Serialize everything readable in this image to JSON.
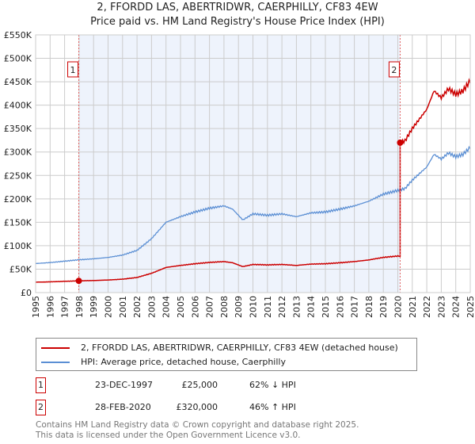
{
  "chart_data": {
    "type": "line",
    "title": "2, FFORDD LAS, ABERTRIDWR, CAERPHILLY, CF83 4EW",
    "subtitle": "Price paid vs. HM Land Registry's House Price Index (HPI)",
    "xlim": [
      1995,
      2025
    ],
    "ylim": [
      0,
      550000
    ],
    "x_ticks": [
      "1995",
      "1996",
      "1997",
      "1998",
      "1999",
      "2000",
      "2001",
      "2002",
      "2003",
      "2004",
      "2005",
      "2006",
      "2007",
      "2008",
      "2009",
      "2010",
      "2011",
      "2012",
      "2013",
      "2014",
      "2015",
      "2016",
      "2017",
      "2018",
      "2019",
      "2020",
      "2021",
      "2022",
      "2023",
      "2024",
      "2025"
    ],
    "y_ticks": [
      {
        "v": 0,
        "l": "£0"
      },
      {
        "v": 50000,
        "l": "£50K"
      },
      {
        "v": 100000,
        "l": "£100K"
      },
      {
        "v": 150000,
        "l": "£150K"
      },
      {
        "v": 200000,
        "l": "£200K"
      },
      {
        "v": 250000,
        "l": "£250K"
      },
      {
        "v": 300000,
        "l": "£300K"
      },
      {
        "v": 350000,
        "l": "£350K"
      },
      {
        "v": 400000,
        "l": "£400K"
      },
      {
        "v": 450000,
        "l": "£450K"
      },
      {
        "v": 500000,
        "l": "£500K"
      },
      {
        "v": 550000,
        "l": "£550K"
      }
    ],
    "grid": true,
    "series": [
      {
        "name": "2, FFORDD LAS, ABERTRIDWR, CAERPHILLY, CF83 4EW (detached house)",
        "color": "#cc0000"
      },
      {
        "name": "HPI: Average price, detached house, Caerphilly",
        "color": "#5b8fd4",
        "x": [
          1995,
          1996,
          1997,
          1998,
          1999,
          2000,
          2001,
          2002,
          2003,
          2004,
          2005,
          2006,
          2007,
          2008,
          2008.6,
          2009.3,
          2010,
          2011,
          2012,
          2013,
          2014,
          2015,
          2016,
          2017,
          2018,
          2019,
          2020,
          2020.5,
          2021,
          2022,
          2022.5,
          2023,
          2023.5,
          2024,
          2024.5,
          2025
        ],
        "y": [
          62000,
          64000,
          67000,
          70000,
          72000,
          75000,
          80000,
          90000,
          115000,
          150000,
          162000,
          172000,
          180000,
          185000,
          178000,
          155000,
          168000,
          165000,
          168000,
          162000,
          170000,
          172000,
          178000,
          185000,
          195000,
          210000,
          218000,
          222000,
          240000,
          268000,
          295000,
          285000,
          298000,
          290000,
          295000,
          310000
        ]
      }
    ],
    "sales": [
      {
        "id": "1",
        "x": 1997.98,
        "date": "23-DEC-1997",
        "price": 25000,
        "price_label": "£25,000",
        "hpi": "62% ↓ HPI"
      },
      {
        "id": "2",
        "x": 2020.16,
        "date": "28-FEB-2020",
        "price": 320000,
        "price_label": "£320,000",
        "hpi": "46% ↑ HPI"
      }
    ],
    "shaded_range": [
      1997.98,
      2020.16
    ]
  },
  "footer": {
    "line1": "Contains HM Land Registry data © Crown copyright and database right 2025.",
    "line2": "This data is licensed under the Open Government Licence v3.0."
  }
}
